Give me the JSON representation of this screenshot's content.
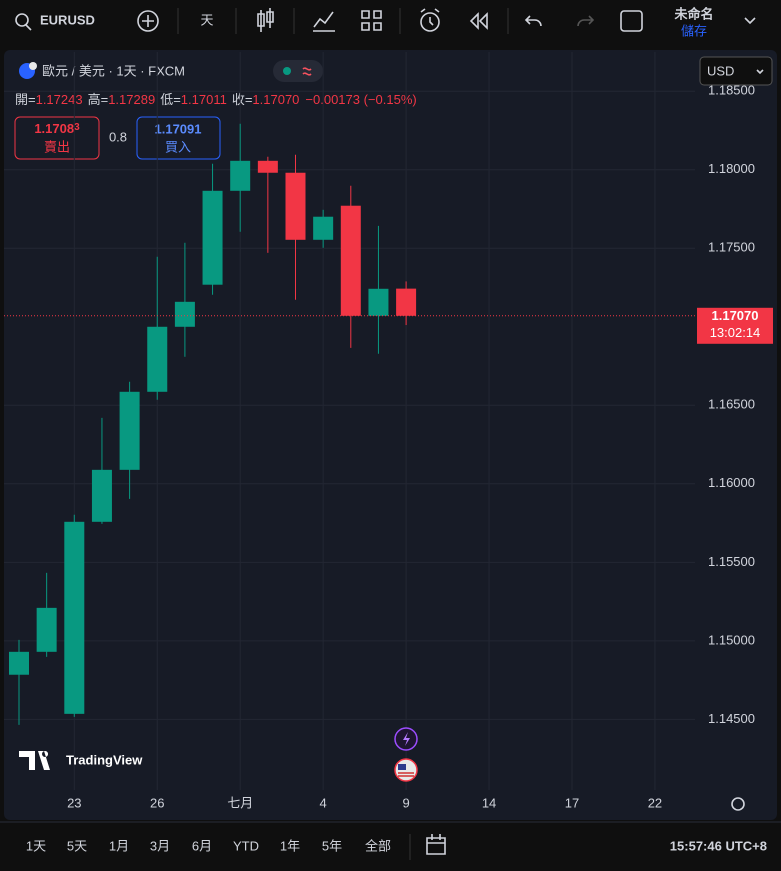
{
  "toolbar": {
    "symbol": "EURUSD",
    "interval": "天",
    "layout_name": "未命名",
    "save": "儲存"
  },
  "header": {
    "title": "歐元 / 美元 · 1天 · FXCM",
    "currency": "USD"
  },
  "legend": {
    "open_label": "開=",
    "open": "1.17243",
    "high_label": "高=",
    "high": "1.17289",
    "low_label": "低=",
    "low": "1.17011",
    "close_label": "收=",
    "close": "1.17070",
    "change": "−0.00173 (−0.15%)"
  },
  "quote": {
    "sell": "1.1708",
    "sell_tail": "3",
    "sell_label": "賣出",
    "spread": "0.8",
    "buy": "1.17091",
    "buy_label": "買入"
  },
  "price_label": {
    "price": "1.17070",
    "countdown": "13:02:14"
  },
  "watermark": "TradingView",
  "chart_data": {
    "type": "candlestick",
    "categories": [
      null,
      null,
      "23",
      null,
      null,
      "26",
      null,
      null,
      "七月",
      null,
      null,
      "4",
      null,
      null,
      "9",
      null,
      null,
      "14",
      null,
      null,
      "17",
      null,
      null,
      "22"
    ],
    "open": [
      1.14784,
      1.1493,
      1.14535,
      1.15758,
      1.16089,
      1.16586,
      1.17,
      1.17268,
      1.17866,
      1.18057,
      1.17981,
      1.17554,
      1.17771,
      1.1707,
      1.17243,
      null,
      null,
      null,
      null,
      null,
      null,
      null,
      null,
      null
    ],
    "high": [
      1.15006,
      1.15433,
      1.15803,
      1.1642,
      1.1665,
      1.17446,
      1.17535,
      1.18038,
      1.18293,
      1.18083,
      1.18096,
      1.17745,
      1.17898,
      1.17643,
      1.17289,
      null,
      null,
      null,
      null,
      null,
      null,
      null,
      null,
      null
    ],
    "low": [
      1.14465,
      1.14898,
      1.14516,
      1.15745,
      1.15904,
      1.16535,
      1.16809,
      1.17204,
      1.17605,
      1.17471,
      1.17172,
      1.17503,
      1.16866,
      1.16828,
      1.17011,
      null,
      null,
      null,
      null,
      null,
      null,
      null,
      null,
      null
    ],
    "close": [
      1.1493,
      1.1521,
      1.15758,
      1.16089,
      1.16586,
      1.17,
      1.17159,
      1.17866,
      1.18057,
      1.17981,
      1.17554,
      1.17701,
      1.1707,
      1.17242,
      1.1707,
      null,
      null,
      null,
      null,
      null,
      null,
      null,
      null,
      null
    ],
    "up_color": "#089981",
    "down_color": "#f23645",
    "ylim": [
      1.1405,
      1.1875
    ],
    "yticks": [
      {
        "value": 1.145,
        "label": "1.14500"
      },
      {
        "value": 1.15,
        "label": "1.15000"
      },
      {
        "value": 1.155,
        "label": "1.15500"
      },
      {
        "value": 1.16,
        "label": "1.16000"
      },
      {
        "value": 1.165,
        "label": "1.16500"
      },
      {
        "value": 1.175,
        "label": "1.17500"
      },
      {
        "value": 1.18,
        "label": "1.18000"
      },
      {
        "value": 1.185,
        "label": "1.18500"
      }
    ],
    "grid": true
  },
  "ranges": [
    "1天",
    "5天",
    "1月",
    "3月",
    "6月",
    "YTD",
    "1年",
    "5年",
    "全部"
  ],
  "clock": "15:57:46 UTC+8"
}
